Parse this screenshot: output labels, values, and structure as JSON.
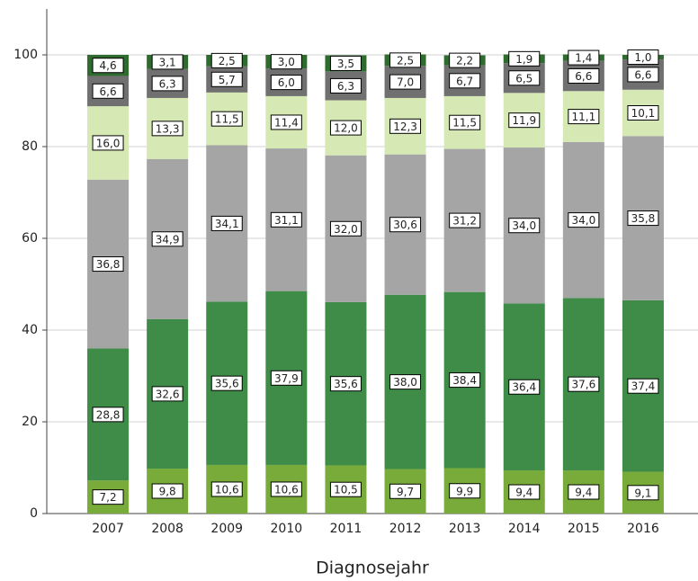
{
  "chart_data": {
    "type": "stacked_bar",
    "x_label": "Diagnosejahr",
    "categories": [
      "2007",
      "2008",
      "2009",
      "2010",
      "2011",
      "2012",
      "2013",
      "2014",
      "2015",
      "2016"
    ],
    "series": [
      {
        "color": "#78ab3a",
        "values": [
          7.2,
          9.8,
          10.6,
          10.6,
          10.5,
          9.7,
          9.9,
          9.4,
          9.4,
          9.1
        ],
        "value_labels": [
          "7,2",
          "9,8",
          "10,6",
          "10,6",
          "10,5",
          "9,7",
          "9,9",
          "9,4",
          "9,4",
          "9,1"
        ]
      },
      {
        "color": "#3f8c48",
        "values": [
          28.8,
          32.6,
          35.6,
          37.9,
          35.6,
          38.0,
          38.4,
          36.4,
          37.6,
          37.4
        ],
        "value_labels": [
          "28,8",
          "32,6",
          "35,6",
          "37,9",
          "35,6",
          "38,0",
          "38,4",
          "36,4",
          "37,6",
          "37,4"
        ]
      },
      {
        "color": "#a5a5a5",
        "values": [
          36.8,
          34.9,
          34.1,
          31.1,
          32.0,
          30.6,
          31.2,
          34.0,
          34.0,
          35.8
        ],
        "value_labels": [
          "36,8",
          "34,9",
          "34,1",
          "31,1",
          "32,0",
          "30,6",
          "31,2",
          "34,0",
          "34,0",
          "35,8"
        ]
      },
      {
        "color": "#d6e8b4",
        "values": [
          16.0,
          13.3,
          11.5,
          11.4,
          12.0,
          12.3,
          11.5,
          11.9,
          11.1,
          10.1
        ],
        "value_labels": [
          "16,0",
          "13,3",
          "11,5",
          "11,4",
          "12,0",
          "12,3",
          "11,5",
          "11,9",
          "11,1",
          "10,1"
        ]
      },
      {
        "color": "#707070",
        "values": [
          6.6,
          6.3,
          5.7,
          6.0,
          6.3,
          7.0,
          6.7,
          6.5,
          6.6,
          6.6
        ],
        "value_labels": [
          "6,6",
          "6,3",
          "5,7",
          "6,0",
          "6,3",
          "7,0",
          "6,7",
          "6,5",
          "6,6",
          "6,6"
        ]
      },
      {
        "color": "#2f6a2f",
        "values": [
          4.6,
          3.1,
          2.5,
          3.0,
          3.5,
          2.5,
          2.2,
          1.9,
          1.4,
          1.0
        ],
        "value_labels": [
          "4,6",
          "3,1",
          "2,5",
          "3,0",
          "3,5",
          "2,5",
          "2,2",
          "1,9",
          "1,4",
          "1,0"
        ]
      }
    ],
    "ylim": [
      0,
      110
    ],
    "yticks": [
      0,
      20,
      40,
      60,
      80,
      100
    ],
    "grid": true
  }
}
